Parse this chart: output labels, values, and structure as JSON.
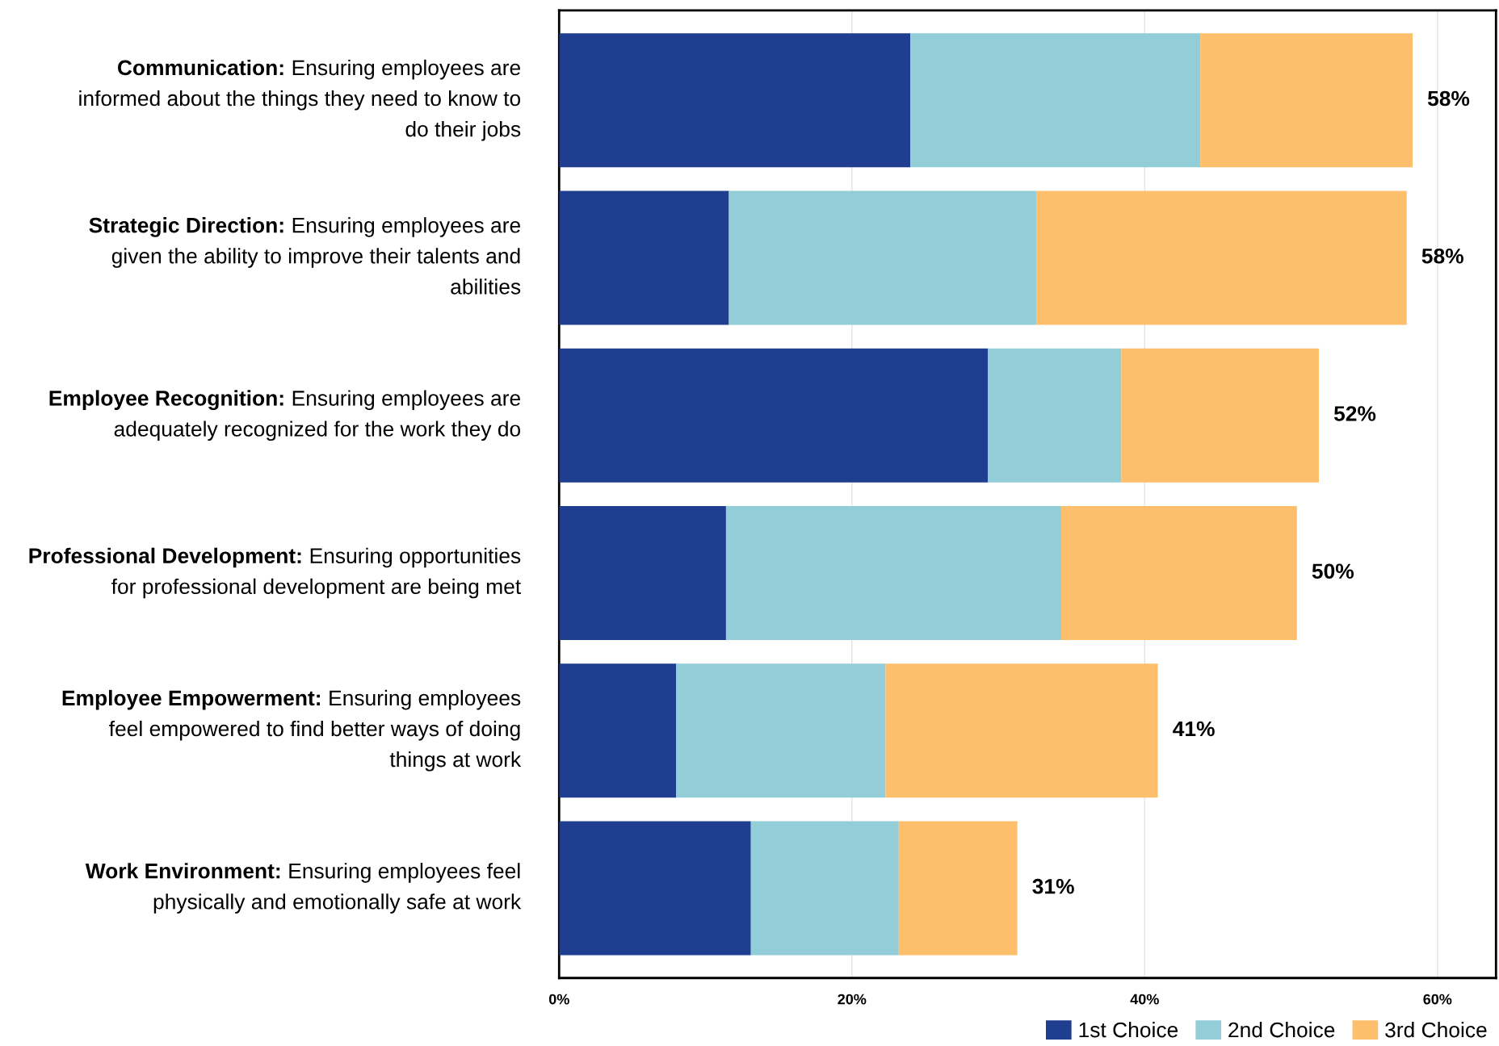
{
  "chart_data": {
    "type": "bar",
    "orientation": "horizontal",
    "stacked": true,
    "categories": [
      "Communication: Ensuring employees are\ninformed about the things they need to know to\ndo their jobs",
      "Strategic Direction: Ensuring employees are\ngiven the ability to improve their talents and\nabilities",
      "Employee Recognition: Ensuring employees are\nadequately recognized for the work they do",
      "Professional Development: Ensuring opportunities\nfor professional development are being met",
      "Employee Empowerment: Ensuring employees\nfeel empowered to find better ways of doing\nthings at work",
      "Work Environment: Ensuring employees feel\nphysically and emotionally safe at work"
    ],
    "series": [
      {
        "name": "1st Choice",
        "color": "#1f3e8f",
        "values": [
          24.0,
          11.6,
          29.3,
          11.4,
          8.0,
          13.1
        ]
      },
      {
        "name": "2nd Choice",
        "color": "#92cdd8",
        "values": [
          19.8,
          21.0,
          9.1,
          22.9,
          14.3,
          10.1
        ]
      },
      {
        "name": "3rd Choice",
        "color": "#fdbf6b",
        "values": [
          14.5,
          25.3,
          13.5,
          16.1,
          18.6,
          8.1
        ]
      }
    ],
    "totals": [
      "58%",
      "58%",
      "52%",
      "50%",
      "41%",
      "31%"
    ],
    "xlim": [
      0,
      64
    ],
    "xticks": [
      {
        "value": 0,
        "label": "0%"
      },
      {
        "value": 20,
        "label": "20%"
      },
      {
        "value": 40,
        "label": "40%"
      },
      {
        "value": 60,
        "label": "60%"
      }
    ],
    "grid": "x",
    "legend": "bottom right"
  }
}
